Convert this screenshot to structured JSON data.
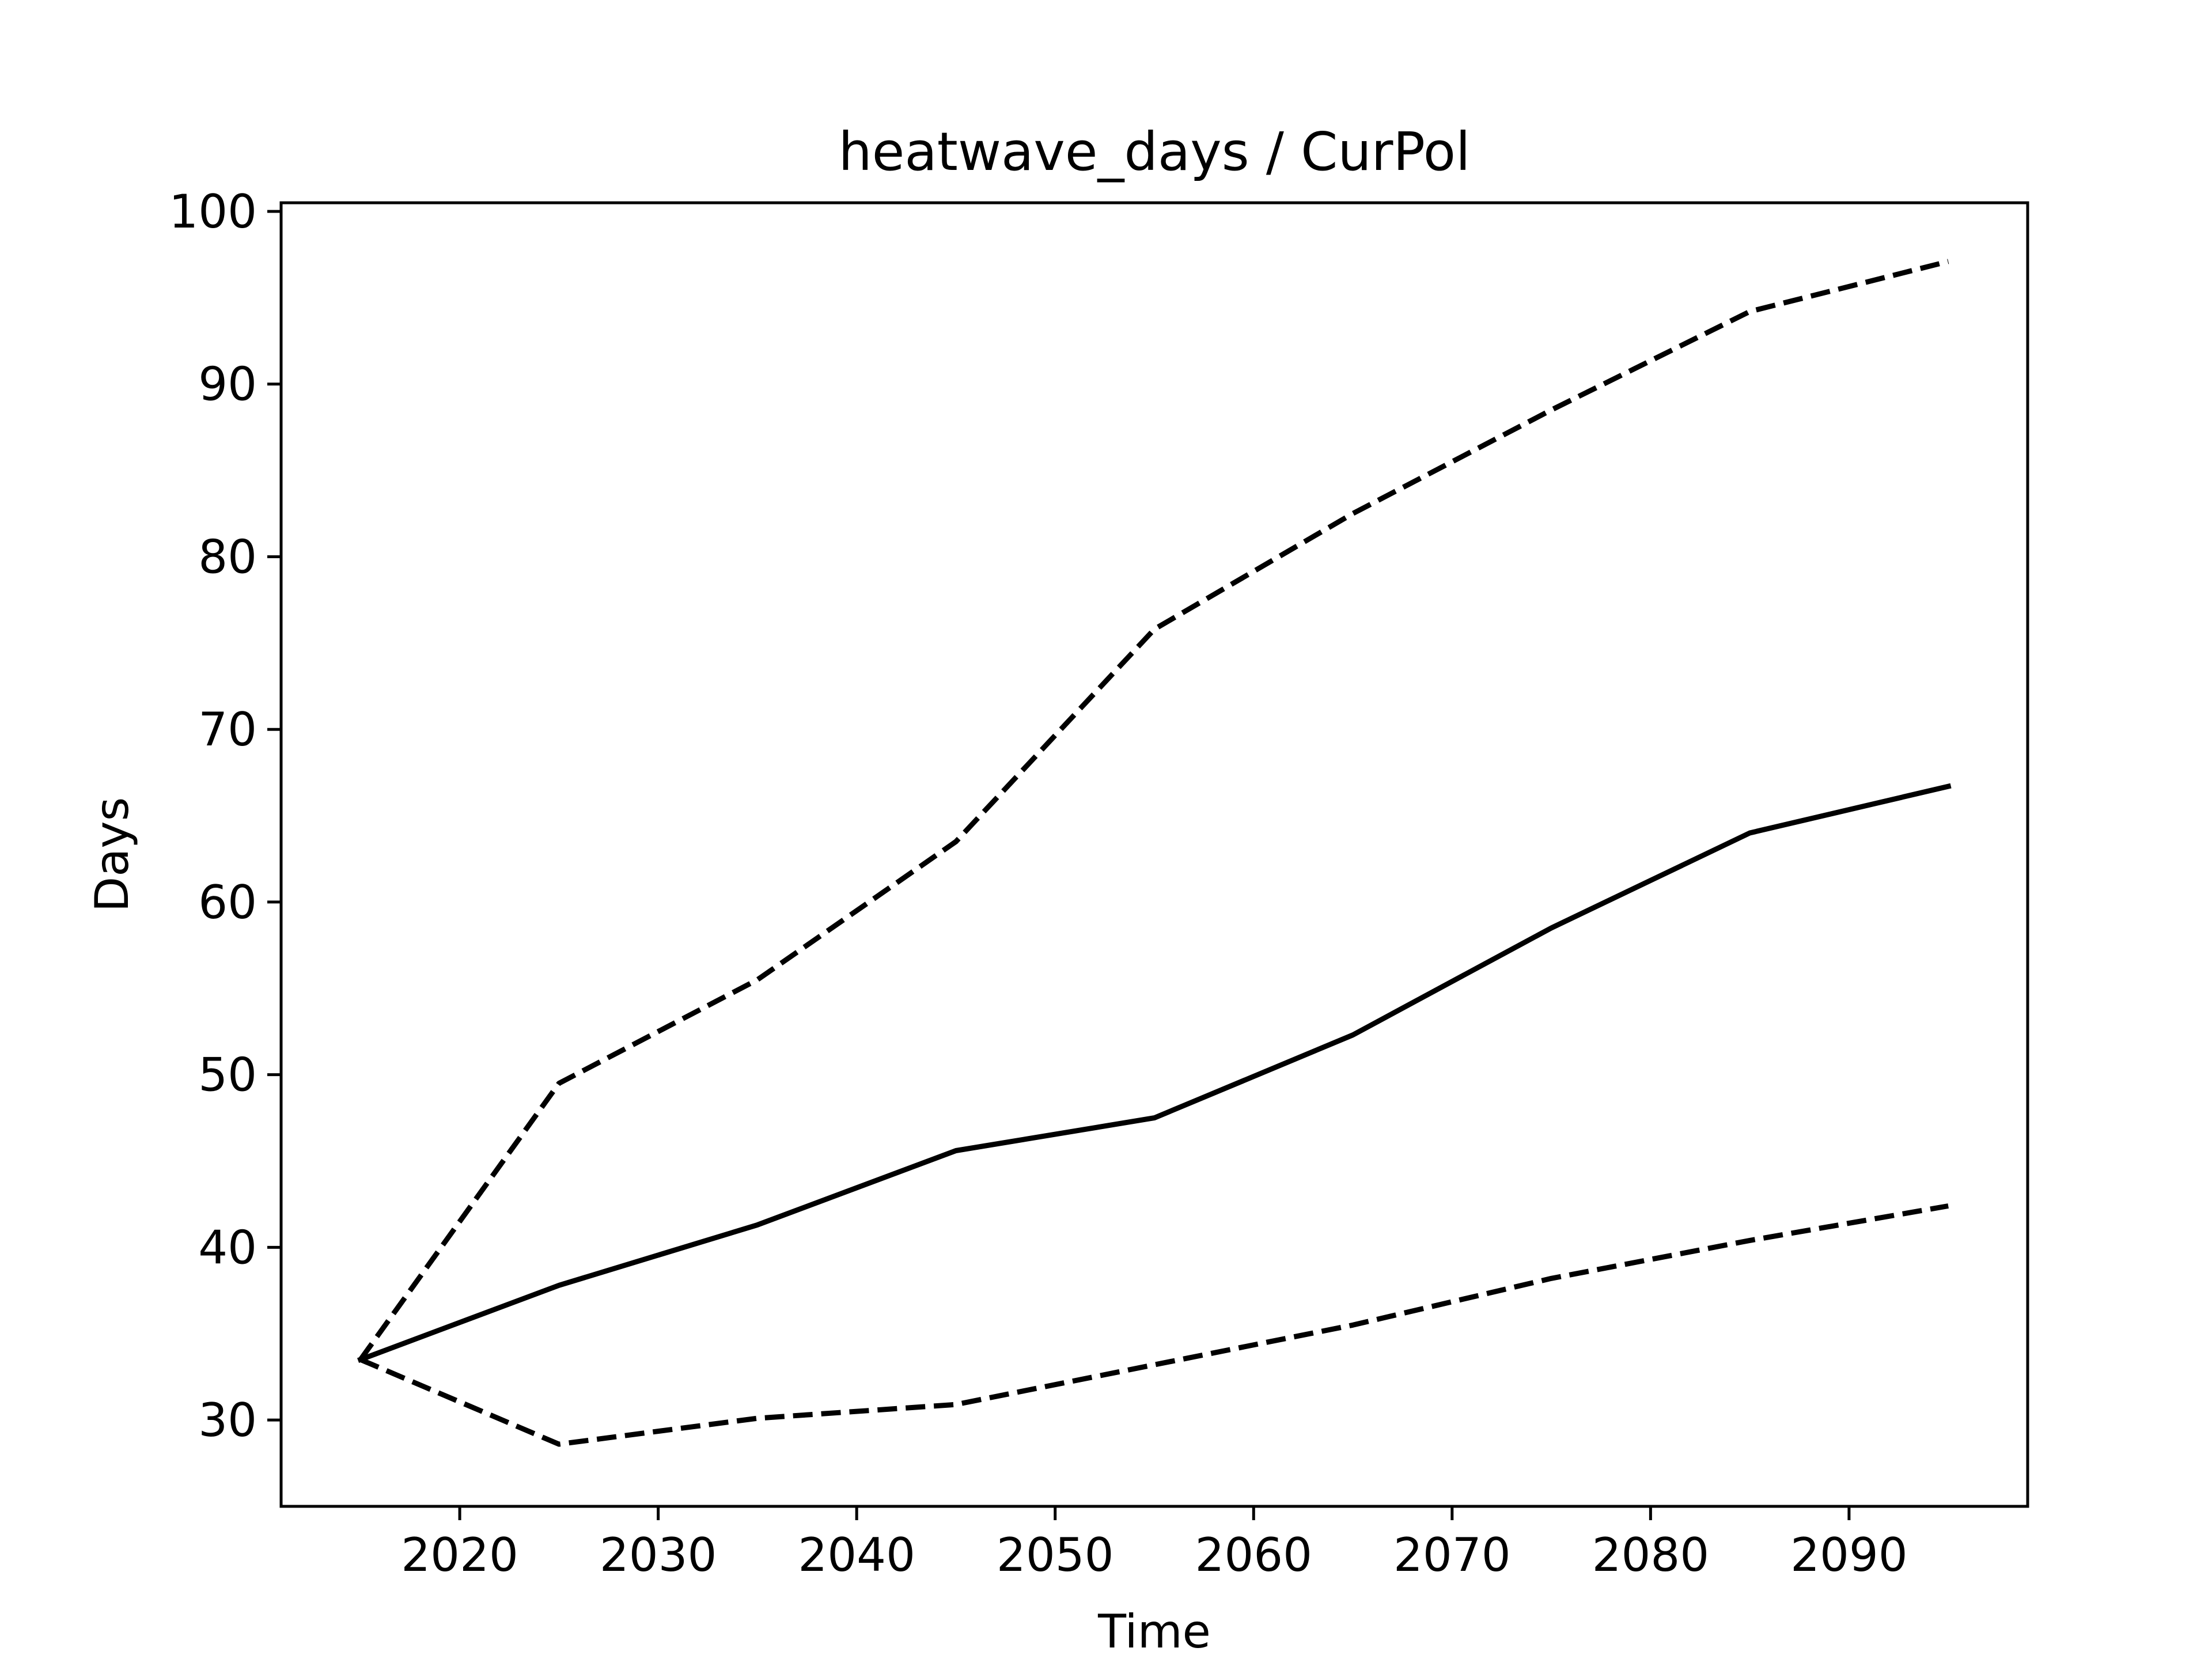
{
  "chart_data": {
    "type": "line",
    "title": "heatwave_days / CurPol",
    "xlabel": "Time",
    "ylabel": "Days",
    "xlim": [
      2011,
      2099
    ],
    "ylim": [
      25,
      100.5
    ],
    "x_ticks": [
      2020,
      2030,
      2040,
      2050,
      2060,
      2070,
      2080,
      2090
    ],
    "y_ticks": [
      30,
      40,
      50,
      60,
      70,
      80,
      90,
      100
    ],
    "grid": false,
    "legend": "none",
    "x": [
      2015,
      2025,
      2035,
      2045,
      2055,
      2065,
      2075,
      2085,
      2095
    ],
    "series": [
      {
        "style": "solid",
        "color": "#000000",
        "values": [
          33.5,
          37.8,
          41.3,
          45.6,
          47.5,
          52.3,
          58.5,
          64.0,
          66.7
        ]
      },
      {
        "style": "dashed",
        "color": "#000000",
        "values": [
          33.5,
          49.5,
          55.5,
          63.5,
          75.8,
          82.5,
          88.5,
          94.2,
          97.1
        ]
      },
      {
        "style": "dashed",
        "color": "#000000",
        "values": [
          33.5,
          28.6,
          30.1,
          30.9,
          33.2,
          35.5,
          38.2,
          40.4,
          42.4
        ]
      }
    ]
  }
}
